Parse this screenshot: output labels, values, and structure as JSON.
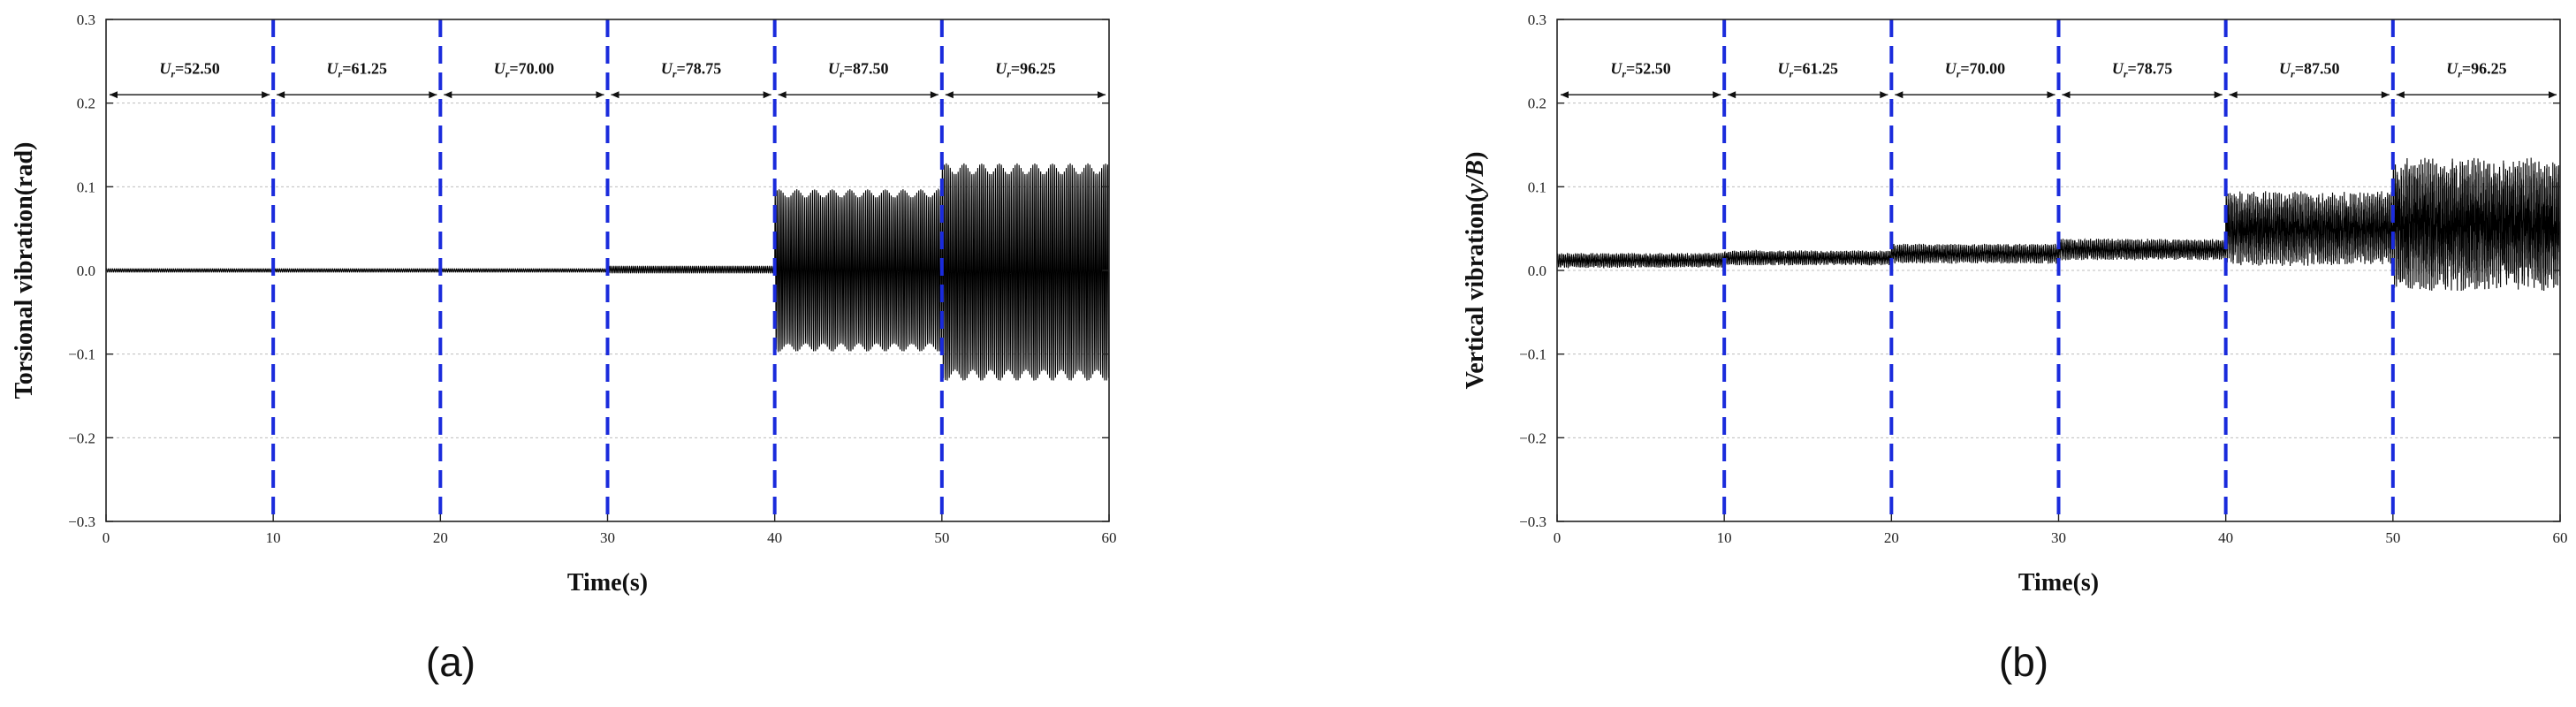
{
  "chart_data": [
    {
      "panel_label": "(a)",
      "type": "line",
      "xlabel": "Time(s)",
      "ylabel": "Torsional vibration(rad)",
      "xlim": [
        0,
        60
      ],
      "ylim": [
        -0.3,
        0.3
      ],
      "xticks": [
        "0",
        "10",
        "20",
        "30",
        "40",
        "50",
        "60"
      ],
      "yticks": [
        "0.3",
        "0.2",
        "0.1",
        "0.0",
        "−0.1",
        "−0.2",
        "−0.3"
      ],
      "grid": true,
      "line_color": "#000000",
      "divider_color": "#1a2bdc",
      "dividers_x": [
        10,
        20,
        30,
        40,
        50
      ],
      "segment_label_y": 0.21,
      "segments": [
        {
          "x0": 0,
          "x1": 10,
          "label_main": "U",
          "label_sub": "r",
          "label_value": "=52.50",
          "center": 0.0,
          "amplitude": 0.002,
          "noise": 0.0
        },
        {
          "x0": 10,
          "x1": 20,
          "label_main": "U",
          "label_sub": "r",
          "label_value": "=61.25",
          "center": 0.0,
          "amplitude": 0.002,
          "noise": 0.0
        },
        {
          "x0": 20,
          "x1": 30,
          "label_main": "U",
          "label_sub": "r",
          "label_value": "=70.00",
          "center": 0.0,
          "amplitude": 0.002,
          "noise": 0.0
        },
        {
          "x0": 30,
          "x1": 40,
          "label_main": "U",
          "label_sub": "r",
          "label_value": "=78.75",
          "center": 0.001,
          "amplitude": 0.004,
          "noise": 0.0
        },
        {
          "x0": 40,
          "x1": 50,
          "label_main": "U",
          "label_sub": "r",
          "label_value": "=87.50",
          "center": 0.0,
          "amplitude": 0.097,
          "noise": 0.0
        },
        {
          "x0": 50,
          "x1": 60,
          "label_main": "U",
          "label_sub": "r",
          "label_value": "=96.25",
          "center": -0.002,
          "amplitude": 0.13,
          "noise": 0.0
        }
      ]
    },
    {
      "panel_label": "(b)",
      "type": "line",
      "xlabel": "Time(s)",
      "ylabel_parts": [
        "Vertical vibration(",
        "y/B",
        ")"
      ],
      "xlim": [
        0,
        60
      ],
      "ylim": [
        -0.3,
        0.3
      ],
      "xticks": [
        "0",
        "10",
        "20",
        "30",
        "40",
        "50",
        "60"
      ],
      "yticks": [
        "0.3",
        "0.2",
        "0.1",
        "0.0",
        "−0.1",
        "−0.2",
        "−0.3"
      ],
      "grid": true,
      "line_color": "#000000",
      "divider_color": "#1a2bdc",
      "dividers_x": [
        10,
        20,
        30,
        40,
        50
      ],
      "segment_label_y": 0.21,
      "segments": [
        {
          "x0": 0,
          "x1": 10,
          "label_main": "U",
          "label_sub": "r",
          "label_value": "=52.50",
          "center": 0.012,
          "amplitude": 0.006,
          "noise": 0.003
        },
        {
          "x0": 10,
          "x1": 20,
          "label_main": "U",
          "label_sub": "r",
          "label_value": "=61.25",
          "center": 0.015,
          "amplitude": 0.006,
          "noise": 0.003
        },
        {
          "x0": 20,
          "x1": 30,
          "label_main": "U",
          "label_sub": "r",
          "label_value": "=70.00",
          "center": 0.02,
          "amplitude": 0.008,
          "noise": 0.004
        },
        {
          "x0": 30,
          "x1": 40,
          "label_main": "U",
          "label_sub": "r",
          "label_value": "=78.75",
          "center": 0.025,
          "amplitude": 0.009,
          "noise": 0.004
        },
        {
          "x0": 40,
          "x1": 50,
          "label_main": "U",
          "label_sub": "r",
          "label_value": "=87.50",
          "center": 0.05,
          "amplitude": 0.03,
          "noise": 0.015
        },
        {
          "x0": 50,
          "x1": 60,
          "label_main": "U",
          "label_sub": "r",
          "label_value": "=96.25",
          "center": 0.055,
          "amplitude": 0.05,
          "noise": 0.03
        }
      ]
    }
  ]
}
